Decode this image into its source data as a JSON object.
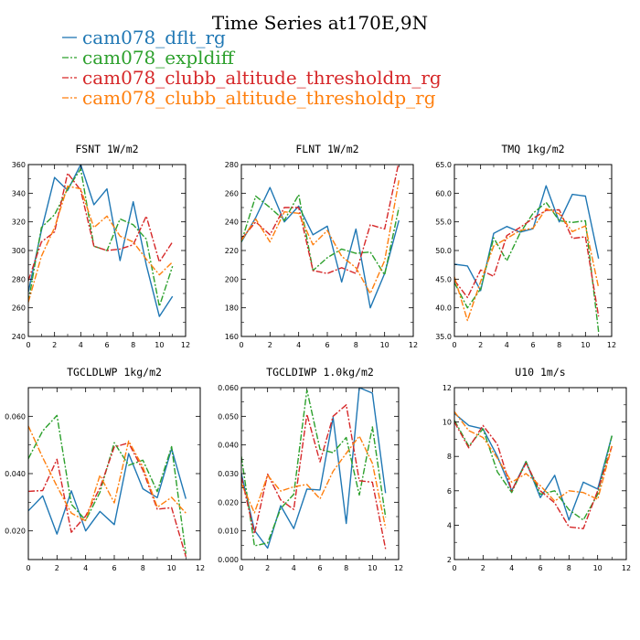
{
  "title": "Time Series at170E,9N",
  "legend": [
    {
      "name": "cam078_dflt_rg",
      "color": "#1f77b4",
      "dash": "solid"
    },
    {
      "name": "cam078_expldiff",
      "color": "#2ca02c",
      "dash": "dashdot"
    },
    {
      "name": "cam078_clubb_altitude_thresholdm_rg",
      "color": "#d62728",
      "dash": "dashdot"
    },
    {
      "name": "cam078_clubb_altitude_thresholdp_rg",
      "color": "#ff7f0e",
      "dash": "dashdot"
    }
  ],
  "chart_data": [
    {
      "type": "line",
      "title": "FSNT  1W/m2",
      "x": [
        0,
        1,
        2,
        3,
        4,
        5,
        6,
        7,
        8,
        9,
        10,
        11
      ],
      "xlim": [
        0,
        12
      ],
      "xticks": [
        "0",
        "2",
        "4",
        "6",
        "8",
        "10",
        "12"
      ],
      "ylim": [
        240,
        360
      ],
      "yticks": [
        "240",
        "260",
        "280",
        "300",
        "320",
        "340",
        "360"
      ],
      "series": [
        {
          "name": "cam078_dflt_rg",
          "values": [
            271,
            314,
            351,
            342,
            360,
            332,
            343,
            293,
            334,
            290,
            254,
            268
          ]
        },
        {
          "name": "cam078_expldiff",
          "values": [
            264,
            316,
            325,
            343,
            357,
            303,
            300,
            322,
            318,
            308,
            261,
            289
          ]
        },
        {
          "name": "cam078_clubb_altitude_thresholdm_rg",
          "values": [
            279,
            306,
            313,
            354,
            342,
            303,
            300,
            301,
            304,
            324,
            292,
            306
          ]
        },
        {
          "name": "cam078_clubb_altitude_thresholdp_rg",
          "values": [
            264,
            296,
            316,
            345,
            343,
            316,
            324,
            310,
            306,
            294,
            283,
            292
          ]
        }
      ]
    },
    {
      "type": "line",
      "title": "FLNT  1W/m2",
      "x": [
        0,
        1,
        2,
        3,
        4,
        5,
        6,
        7,
        8,
        9,
        10,
        11
      ],
      "xlim": [
        0,
        12
      ],
      "xticks": [
        "0",
        "2",
        "4",
        "6",
        "8",
        "10",
        "12"
      ],
      "ylim": [
        160,
        280
      ],
      "yticks": [
        "160",
        "180",
        "200",
        "220",
        "240",
        "260",
        "280"
      ],
      "series": [
        {
          "name": "cam078_dflt_rg",
          "values": [
            226,
            243,
            264,
            240,
            251,
            231,
            237,
            198,
            235,
            180,
            204,
            241
          ]
        },
        {
          "name": "cam078_expldiff",
          "values": [
            226,
            258,
            250,
            241,
            259,
            206,
            215,
            221,
            218,
            219,
            203,
            250
          ]
        },
        {
          "name": "cam078_clubb_altitude_thresholdm_rg",
          "values": [
            228,
            240,
            231,
            250,
            250,
            206,
            204,
            208,
            204,
            238,
            235,
            282
          ]
        },
        {
          "name": "cam078_clubb_altitude_thresholdp_rg",
          "values": [
            227,
            242,
            226,
            247,
            246,
            224,
            234,
            216,
            208,
            190,
            213,
            269
          ]
        }
      ]
    },
    {
      "type": "line",
      "title": "TMQ  1kg/m2",
      "x": [
        0,
        1,
        2,
        3,
        4,
        5,
        6,
        7,
        8,
        9,
        10,
        11
      ],
      "xlim": [
        0,
        12
      ],
      "xticks": [
        "0",
        "2",
        "4",
        "6",
        "8",
        "10",
        "12"
      ],
      "ylim": [
        35,
        65
      ],
      "yticks": [
        "35.0",
        "40.0",
        "45.0",
        "50.0",
        "55.0",
        "60.0",
        "65.0"
      ],
      "series": [
        {
          "name": "cam078_dflt_rg",
          "values": [
            47.6,
            47.3,
            43.0,
            53.0,
            54.2,
            53.2,
            53.8,
            61.3,
            55.0,
            59.8,
            59.5,
            48.6
          ]
        },
        {
          "name": "cam078_expldiff",
          "values": [
            44.4,
            40.0,
            43.3,
            52.2,
            48.2,
            53.0,
            56.5,
            58.4,
            55.2,
            54.9,
            55.2,
            35.8
          ]
        },
        {
          "name": "cam078_clubb_altitude_thresholdm_rg",
          "values": [
            44.8,
            41.8,
            46.6,
            45.5,
            52.6,
            54.0,
            55.6,
            57.0,
            57.1,
            52.1,
            52.4,
            38.5
          ]
        },
        {
          "name": "cam078_clubb_altitude_thresholdp_rg",
          "values": [
            45.4,
            37.8,
            44.6,
            50.8,
            52.1,
            53.5,
            53.9,
            57.3,
            56.4,
            53.3,
            54.3,
            43.5
          ]
        }
      ]
    },
    {
      "type": "line",
      "title": "TGCLDLWP  1kg/m2",
      "x": [
        0,
        1,
        2,
        3,
        4,
        5,
        6,
        7,
        8,
        9,
        10,
        11
      ],
      "xlim": [
        0,
        12
      ],
      "xticks": [
        "0",
        "2",
        "4",
        "6",
        "8",
        "10",
        "12"
      ],
      "ylim": [
        0.01,
        0.07
      ],
      "yticks": [
        "0.020",
        "0.040",
        "0.060"
      ],
      "ytickvals": [
        0.02,
        0.04,
        0.06
      ],
      "series": [
        {
          "name": "cam078_dflt_rg",
          "values": [
            0.027,
            0.0322,
            0.0189,
            0.034,
            0.02,
            0.0268,
            0.0222,
            0.047,
            0.0347,
            0.0316,
            0.0487,
            0.0312
          ]
        },
        {
          "name": "cam078_expldiff",
          "values": [
            0.0452,
            0.0549,
            0.0603,
            0.0293,
            0.0237,
            0.0335,
            0.0508,
            0.0429,
            0.0447,
            0.0337,
            0.0494,
            0.012
          ]
        },
        {
          "name": "cam078_clubb_altitude_thresholdm_rg",
          "values": [
            0.0338,
            0.0341,
            0.045,
            0.0195,
            0.0252,
            0.035,
            0.0493,
            0.0507,
            0.0412,
            0.0276,
            0.0281,
            0.011
          ]
        },
        {
          "name": "cam078_clubb_altitude_thresholdp_rg",
          "values": [
            0.0566,
            0.0456,
            0.0356,
            0.0262,
            0.0235,
            0.0394,
            0.0298,
            0.0514,
            0.0423,
            0.0283,
            0.0317,
            0.0262
          ]
        }
      ]
    },
    {
      "type": "line",
      "title": "TGCLDIWP  1.0kg/m2",
      "x": [
        0,
        1,
        2,
        3,
        4,
        5,
        6,
        7,
        8,
        9,
        10,
        11
      ],
      "xlim": [
        0,
        12
      ],
      "xticks": [
        "0",
        "2",
        "4",
        "6",
        "8",
        "10",
        "12"
      ],
      "ylim": [
        0,
        0.06
      ],
      "yticks": [
        "0.000",
        "0.010",
        "0.020",
        "0.030",
        "0.040",
        "0.050",
        "0.060"
      ],
      "series": [
        {
          "name": "cam078_dflt_rg",
          "values": [
            0.03,
            0.0102,
            0.004,
            0.0188,
            0.0108,
            0.0246,
            0.0243,
            0.0496,
            0.0126,
            0.06,
            0.0581,
            0.0232
          ]
        },
        {
          "name": "cam078_expldiff",
          "values": [
            0.036,
            0.0048,
            0.0058,
            0.0178,
            0.0228,
            0.0592,
            0.0385,
            0.0373,
            0.0426,
            0.0225,
            0.0463,
            0.0148
          ]
        },
        {
          "name": "cam078_clubb_altitude_thresholdm_rg",
          "values": [
            0.0288,
            0.009,
            0.0298,
            0.0208,
            0.0175,
            0.0507,
            0.0341,
            0.05,
            0.054,
            0.0275,
            0.027,
            0.0037
          ]
        },
        {
          "name": "cam078_clubb_altitude_thresholdp_rg",
          "values": [
            0.0266,
            0.0163,
            0.0294,
            0.0239,
            0.0254,
            0.0262,
            0.0212,
            0.0308,
            0.0371,
            0.0431,
            0.0336,
            0.011
          ]
        }
      ]
    },
    {
      "type": "line",
      "title": "U10  1m/s",
      "x": [
        0,
        1,
        2,
        3,
        4,
        5,
        6,
        7,
        8,
        9,
        10,
        11
      ],
      "xlim": [
        0,
        12
      ],
      "xticks": [
        "0",
        "2",
        "4",
        "6",
        "8",
        "10",
        "12"
      ],
      "ylim": [
        2,
        12
      ],
      "yticks": [
        "2",
        "4",
        "6",
        "8",
        "10",
        "12"
      ],
      "series": [
        {
          "name": "cam078_dflt_rg",
          "values": [
            10.5,
            9.8,
            9.6,
            8.0,
            6.0,
            7.7,
            5.6,
            6.9,
            4.3,
            6.5,
            6.1,
            9.2
          ]
        },
        {
          "name": "cam078_expldiff",
          "values": [
            10.1,
            8.6,
            9.6,
            7.1,
            5.9,
            7.7,
            5.8,
            6.0,
            4.9,
            4.3,
            5.8,
            9.2
          ]
        },
        {
          "name": "cam078_clubb_altitude_thresholdm_rg",
          "values": [
            10.0,
            8.5,
            9.8,
            8.7,
            6.0,
            7.6,
            6.0,
            5.3,
            3.9,
            3.8,
            6.0,
            8.6
          ]
        },
        {
          "name": "cam078_clubb_altitude_thresholdp_rg",
          "values": [
            10.6,
            9.5,
            9.1,
            7.9,
            6.5,
            7.0,
            6.3,
            5.4,
            6.0,
            5.9,
            5.5,
            8.6
          ]
        }
      ]
    }
  ]
}
